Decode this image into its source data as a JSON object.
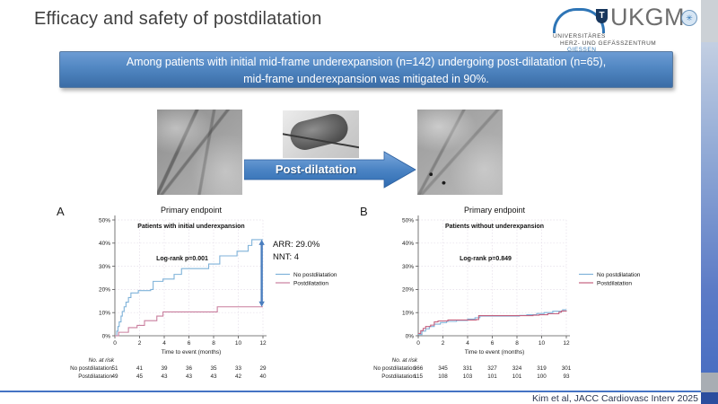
{
  "slide": {
    "title": "Efficacy and safety of postdilatation",
    "banner_lines": [
      "Among patients with initial mid-frame underexpansion (n=142) undergoing post-dilatation (n=65),",
      "mid-frame underexpansion was mitigated in 90%."
    ],
    "arrow_label": "Post-dilatation",
    "citation": "Kim et al, JACC Cardiovasc Interv 2025"
  },
  "logo": {
    "name": "UKGM",
    "shield_letter": "T",
    "badge_glyph": "✳",
    "sub1": "UNIVERSITÄRES",
    "sub2": "HERZ- UND GEFÄSSZENTRUM",
    "sub3": "GIESSEN"
  },
  "colors": {
    "banner_blue_top": "#6d9cd4",
    "banner_blue_bottom": "#3a6ca6",
    "accent_blue": "#4573c4",
    "curve_blue": "#7fb2d9",
    "curve_pink": "#c97f9e",
    "arrow_blue": "#4a7ebf",
    "title_gray": "#3f3f3f"
  },
  "chart_data": [
    {
      "type": "line",
      "panel": "A",
      "title": "Primary endpoint",
      "subtitle": "Patients with initial underexpansion",
      "annotation": "Log-rank p=0.001",
      "xlabel": "Time to event (months)",
      "xlim": [
        0,
        12
      ],
      "ylim": [
        0,
        50
      ],
      "xticks": [
        0,
        2,
        4,
        6,
        8,
        10,
        12
      ],
      "yticks": [
        "0%",
        "10%",
        "20%",
        "30%",
        "40%",
        "50%"
      ],
      "grid": "dotted",
      "legend_position": "right",
      "series": [
        {
          "name": "No postdilatation",
          "color": "#7fb2d9",
          "points": [
            [
              0,
              0
            ],
            [
              0.15,
              2
            ],
            [
              0.25,
              4
            ],
            [
              0.35,
              6
            ],
            [
              0.5,
              8.5
            ],
            [
              0.6,
              10.5
            ],
            [
              0.75,
              12.5
            ],
            [
              0.9,
              14.5
            ],
            [
              1.1,
              16.5
            ],
            [
              1.3,
              18.5
            ],
            [
              1.9,
              19.5
            ],
            [
              2.9,
              20
            ],
            [
              3.1,
              23.5
            ],
            [
              3.9,
              24.5
            ],
            [
              4.8,
              26.5
            ],
            [
              5.4,
              29
            ],
            [
              7.6,
              31
            ],
            [
              8.5,
              34.5
            ],
            [
              9.9,
              36.5
            ],
            [
              10.8,
              39
            ],
            [
              11.1,
              41.5
            ],
            [
              12,
              41.5
            ]
          ]
        },
        {
          "name": "Postdilatation",
          "color": "#c97f9e",
          "points": [
            [
              0,
              0
            ],
            [
              0.3,
              1.5
            ],
            [
              1.1,
              3.5
            ],
            [
              1.8,
              4.5
            ],
            [
              2.4,
              6.5
            ],
            [
              3.4,
              8.5
            ],
            [
              3.9,
              10.3
            ],
            [
              8.3,
              12.5
            ],
            [
              12,
              12.5
            ]
          ]
        }
      ],
      "effect_note": {
        "lines": [
          "ARR: 29.0%",
          "NNT: 4"
        ],
        "arrow_x": 11.9,
        "arrow_y": [
          12.5,
          41.5
        ]
      },
      "risk_table": {
        "header": "No. at risk",
        "rows": [
          {
            "label": "No postdilatation",
            "values": [
              51,
              41,
              39,
              36,
              35,
              33,
              29
            ]
          },
          {
            "label": "Postdilatation",
            "values": [
              49,
              45,
              43,
              43,
              43,
              42,
              40
            ]
          }
        ]
      }
    },
    {
      "type": "line",
      "panel": "B",
      "title": "Primary endpoint",
      "subtitle": "Patients without underexpansion",
      "annotation": "Log-rank p=0.849",
      "xlabel": "Time to event (months)",
      "xlim": [
        0,
        12
      ],
      "ylim": [
        0,
        50
      ],
      "xticks": [
        0,
        2,
        4,
        6,
        8,
        10,
        12
      ],
      "yticks": [
        "0%",
        "10%",
        "20%",
        "30%",
        "40%",
        "50%"
      ],
      "grid": "dotted",
      "legend_position": "right",
      "series": [
        {
          "name": "No postdilatation",
          "color": "#7fb2d9",
          "points": [
            [
              0,
              0.5
            ],
            [
              0.3,
              2
            ],
            [
              0.6,
              3
            ],
            [
              0.9,
              4
            ],
            [
              1.3,
              5
            ],
            [
              1.8,
              5.7
            ],
            [
              2.3,
              6.2
            ],
            [
              3.1,
              6.6
            ],
            [
              4,
              7.2
            ],
            [
              4.6,
              7.8
            ],
            [
              5,
              8.5
            ],
            [
              8.2,
              8.8
            ],
            [
              8.8,
              9.1
            ],
            [
              9.6,
              9.6
            ],
            [
              10.2,
              10
            ],
            [
              10.9,
              10.6
            ],
            [
              11.7,
              11.2
            ],
            [
              12,
              11.3
            ]
          ]
        },
        {
          "name": "Postdilatation",
          "color": "#c4607e",
          "points": [
            [
              0,
              1
            ],
            [
              0.2,
              2.2
            ],
            [
              0.4,
              3.2
            ],
            [
              0.6,
              4
            ],
            [
              1,
              4.6
            ],
            [
              1.3,
              6
            ],
            [
              1.6,
              6.4
            ],
            [
              2.4,
              6.8
            ],
            [
              4.7,
              7
            ],
            [
              4.9,
              8.7
            ],
            [
              9.3,
              8.9
            ],
            [
              9.8,
              9.1
            ],
            [
              10.5,
              9.5
            ],
            [
              11.4,
              10.2
            ],
            [
              11.6,
              10.7
            ],
            [
              12,
              10.8
            ]
          ]
        }
      ],
      "risk_table": {
        "header": "No. at risk",
        "rows": [
          {
            "label": "No postdilatation",
            "values": [
              366,
              345,
              331,
              327,
              324,
              319,
              301
            ]
          },
          {
            "label": "Postdilatation",
            "values": [
              115,
              108,
              103,
              101,
              101,
              100,
              93
            ]
          }
        ]
      }
    }
  ]
}
